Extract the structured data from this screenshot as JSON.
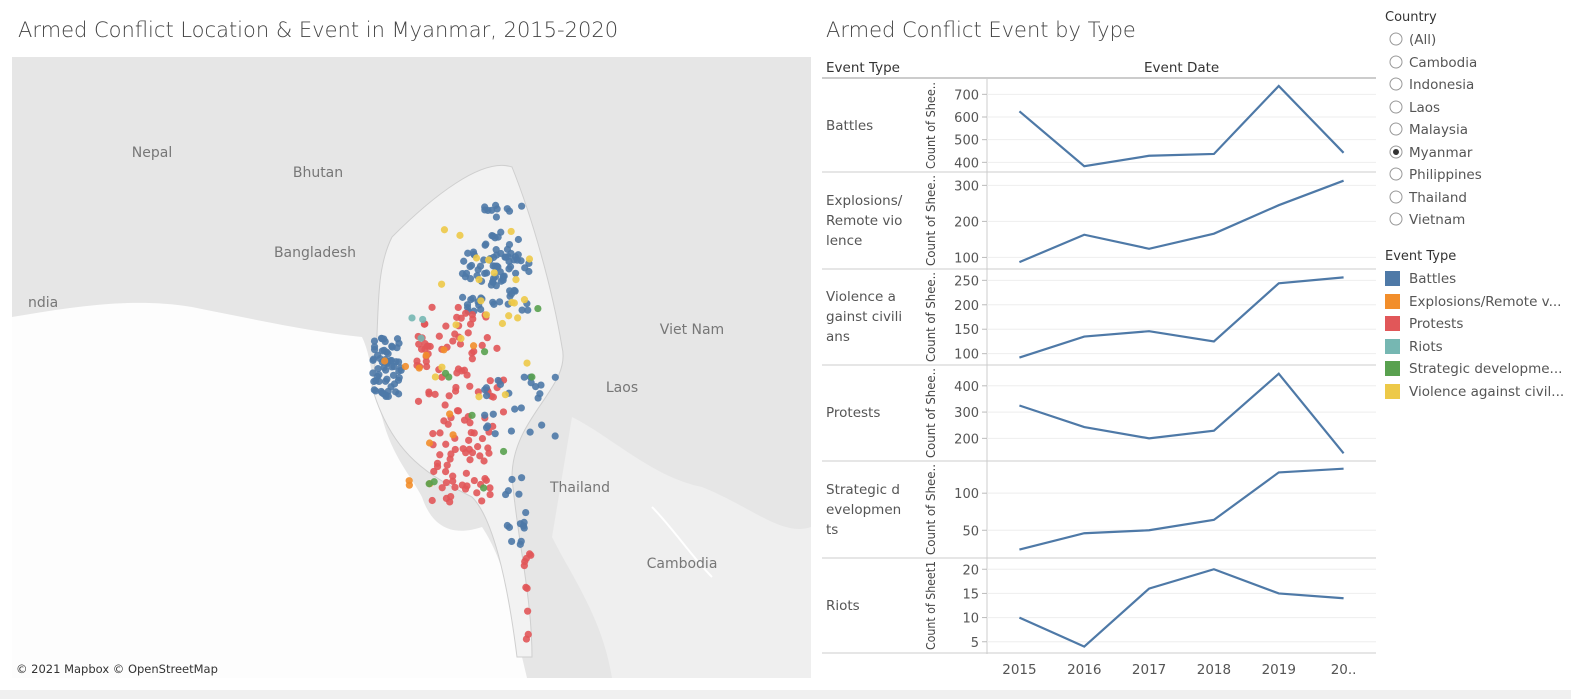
{
  "dashboard": {
    "map_title": "Armed Conflict Location & Event in Myanmar, 2015-2020",
    "chart_title": "Armed Conflict Event by Type",
    "row_header": "Event Type"
  },
  "map": {
    "labels": [
      "Nepal",
      "Bhutan",
      "Bangladesh",
      "ndia",
      "Viet Nam",
      "Laos",
      "Thailand",
      "Cambodia"
    ],
    "attribution": "© 2021 Mapbox © OpenStreetMap"
  },
  "x_axis": {
    "title": "Event Date",
    "categories": [
      "2015",
      "2016",
      "2017",
      "2018",
      "2019",
      "20.."
    ]
  },
  "chart_data": [
    {
      "type": "line",
      "row_label": "Battles",
      "y_label": "Count of Shee..",
      "color": "#4e79a7",
      "values": [
        625,
        383,
        429,
        437,
        737,
        442
      ],
      "ylim": [
        375,
        750
      ],
      "yticks": [
        400,
        500,
        600,
        700
      ]
    },
    {
      "type": "line",
      "row_label": "Explosions/ Remote violence",
      "y_label": "Count of Shee..",
      "color": "#4e79a7",
      "values": [
        87,
        163,
        124,
        166,
        245,
        313
      ],
      "ylim": [
        79,
        326
      ],
      "yticks": [
        100,
        200,
        300
      ]
    },
    {
      "type": "line",
      "row_label": "Violence against civilians",
      "y_label": "Count of Shee..",
      "color": "#4e79a7",
      "values": [
        92,
        135,
        146,
        125,
        244,
        256
      ],
      "ylim": [
        85,
        265
      ],
      "yticks": [
        100,
        150,
        200,
        250
      ]
    },
    {
      "type": "line",
      "row_label": "Protests",
      "y_label": "Count of Shee..",
      "color": "#4e79a7",
      "values": [
        325,
        243,
        200,
        229,
        446,
        143
      ],
      "ylim": [
        129,
        464
      ],
      "yticks": [
        200,
        300,
        400
      ]
    },
    {
      "type": "line",
      "row_label": "Strategic developments",
      "y_label": "Count of Shee..",
      "color": "#4e79a7",
      "values": [
        24,
        46,
        50,
        64,
        128,
        133
      ],
      "ylim": [
        18,
        138
      ],
      "yticks": [
        50,
        100
      ]
    },
    {
      "type": "line",
      "row_label": "Riots",
      "y_label": "Count of Sheet1",
      "color": "#4e79a7",
      "values": [
        10,
        4,
        16,
        20,
        15,
        14
      ],
      "ylim": [
        3.5,
        21.5
      ],
      "yticks": [
        5,
        10,
        15,
        20
      ]
    }
  ],
  "country_filter": {
    "title": "Country",
    "options": [
      "(All)",
      "Cambodia",
      "Indonesia",
      "Laos",
      "Malaysia",
      "Myanmar",
      "Philippines",
      "Thailand",
      "Vietnam"
    ],
    "selected": "Myanmar"
  },
  "event_legend": {
    "title": "Event Type",
    "items": [
      {
        "name": "Battles",
        "color": "#4e79a7"
      },
      {
        "name": "Explosions/Remote v...",
        "color": "#f28e2b"
      },
      {
        "name": "Protests",
        "color": "#e15759"
      },
      {
        "name": "Riots",
        "color": "#76b7b2"
      },
      {
        "name": "Strategic developme...",
        "color": "#59a14f"
      },
      {
        "name": "Violence against civil...",
        "color": "#edc948"
      }
    ]
  }
}
